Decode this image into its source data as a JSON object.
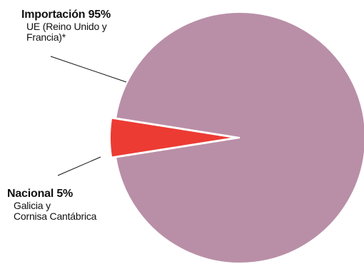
{
  "chart_data": {
    "type": "pie",
    "slices": [
      {
        "label": "Importación 95%",
        "detail_lines": [
          "UE (Reino Unido y",
          "Francia)*"
        ],
        "value": 95,
        "color": "#b98fa7",
        "exploded": false
      },
      {
        "label": "Nacional 5%",
        "detail_lines": [
          "Galicia y",
          "Cornisa Cantábrica"
        ],
        "value": 5,
        "color": "#ec3b33",
        "exploded": true
      }
    ],
    "legend": "none",
    "labels": "external with leader lines"
  }
}
